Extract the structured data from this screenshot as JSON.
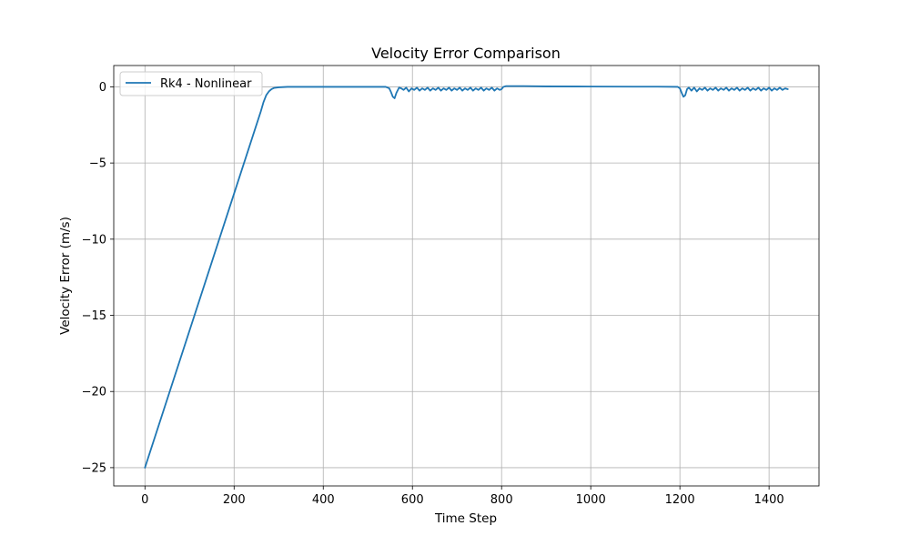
{
  "chart_data": {
    "type": "line",
    "title": "Velocity Error Comparison",
    "xlabel": "Time Step",
    "ylabel": "Velocity Error (m/s)",
    "xlim": [
      -70,
      1512
    ],
    "ylim": [
      -26.2,
      1.4
    ],
    "xticks": [
      0,
      200,
      400,
      600,
      800,
      1000,
      1200,
      1400
    ],
    "yticks": [
      0,
      -5,
      -10,
      -15,
      -20,
      -25
    ],
    "grid": true,
    "legend_position": "upper-left",
    "series": [
      {
        "name": "Rk4 - Nonlinear",
        "color": "#1f77b4",
        "x": [
          0,
          260,
          266,
          272,
          278,
          284,
          290,
          300,
          320,
          400,
          500,
          540,
          548,
          552,
          556,
          560,
          564,
          570,
          575,
          580,
          586,
          592,
          598,
          604,
          610,
          616,
          622,
          628,
          634,
          640,
          646,
          652,
          658,
          664,
          670,
          676,
          682,
          688,
          694,
          700,
          706,
          712,
          718,
          724,
          730,
          736,
          742,
          748,
          754,
          760,
          766,
          772,
          778,
          784,
          790,
          796,
          800,
          804,
          810,
          850,
          900,
          1000,
          1100,
          1150,
          1195,
          1200,
          1204,
          1208,
          1212,
          1216,
          1220,
          1226,
          1232,
          1238,
          1244,
          1250,
          1256,
          1262,
          1268,
          1274,
          1280,
          1286,
          1292,
          1298,
          1304,
          1310,
          1316,
          1322,
          1328,
          1334,
          1340,
          1346,
          1352,
          1358,
          1364,
          1370,
          1376,
          1382,
          1388,
          1394,
          1400,
          1406,
          1412,
          1418,
          1424,
          1430,
          1436,
          1442
        ],
        "y": [
          -25,
          -1.6,
          -1.0,
          -0.55,
          -0.3,
          -0.15,
          -0.07,
          -0.03,
          0.0,
          0.0,
          0.0,
          0.0,
          -0.1,
          -0.35,
          -0.65,
          -0.75,
          -0.4,
          -0.05,
          -0.1,
          -0.2,
          -0.05,
          -0.3,
          -0.1,
          -0.2,
          -0.05,
          -0.25,
          -0.1,
          -0.2,
          -0.05,
          -0.25,
          -0.1,
          -0.2,
          -0.05,
          -0.25,
          -0.1,
          -0.2,
          -0.05,
          -0.25,
          -0.1,
          -0.2,
          -0.05,
          -0.25,
          -0.1,
          -0.2,
          -0.05,
          -0.25,
          -0.1,
          -0.2,
          -0.05,
          -0.25,
          -0.1,
          -0.2,
          -0.05,
          -0.25,
          -0.1,
          -0.2,
          -0.15,
          0.0,
          0.05,
          0.05,
          0.03,
          0.02,
          0.01,
          0.01,
          0.0,
          -0.1,
          -0.4,
          -0.65,
          -0.55,
          -0.15,
          -0.05,
          -0.25,
          -0.05,
          -0.3,
          -0.1,
          -0.2,
          -0.05,
          -0.25,
          -0.1,
          -0.2,
          -0.05,
          -0.25,
          -0.1,
          -0.2,
          -0.05,
          -0.25,
          -0.1,
          -0.2,
          -0.05,
          -0.25,
          -0.1,
          -0.2,
          -0.05,
          -0.25,
          -0.1,
          -0.2,
          -0.05,
          -0.25,
          -0.1,
          -0.2,
          -0.05,
          -0.25,
          -0.1,
          -0.2,
          -0.05,
          -0.2,
          -0.1,
          -0.15
        ]
      }
    ]
  }
}
